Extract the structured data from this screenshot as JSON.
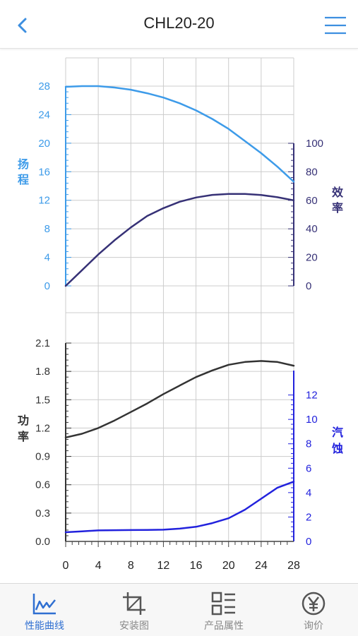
{
  "header": {
    "title": "CHL20-20"
  },
  "tabs": [
    {
      "label": "性能曲线",
      "icon": "line-chart-icon",
      "active": true
    },
    {
      "label": "安装图",
      "icon": "crop-icon",
      "active": false
    },
    {
      "label": "产品属性",
      "icon": "list-icon",
      "active": false
    },
    {
      "label": "询价",
      "icon": "yen-icon",
      "active": false
    }
  ],
  "colors": {
    "head": "#3d9be9",
    "efficiency": "#363176",
    "power": "#333333",
    "npsh": "#2222dd",
    "grid": "#cccccc",
    "active": "#2f6fd1"
  },
  "chart_data": [
    {
      "type": "line",
      "x_ticks": [
        "0",
        "4",
        "8",
        "12",
        "16",
        "20",
        "24",
        "28"
      ],
      "xlim": [
        0,
        28
      ],
      "grid": true,
      "left_axis": {
        "label": "扬程",
        "ylim": [
          0,
          28
        ],
        "ticks": [
          "0",
          "4",
          "8",
          "12",
          "16",
          "20",
          "24",
          "28"
        ]
      },
      "right_axis": {
        "label": "效率",
        "ylim": [
          0,
          100
        ],
        "ticks": [
          "0",
          "20",
          "40",
          "60",
          "80",
          "100"
        ]
      },
      "series": [
        {
          "axis": "left",
          "color": "#3d9be9",
          "x": [
            0,
            2,
            4,
            6,
            8,
            10,
            12,
            14,
            16,
            18,
            20,
            22,
            24,
            26,
            28
          ],
          "y": [
            27.9,
            28.0,
            28.0,
            27.8,
            27.5,
            27.0,
            26.4,
            25.6,
            24.6,
            23.4,
            22.0,
            20.3,
            18.6,
            16.7,
            14.6
          ]
        },
        {
          "axis": "right",
          "color": "#363176",
          "x": [
            0,
            2,
            4,
            6,
            8,
            10,
            12,
            14,
            16,
            18,
            20,
            22,
            24,
            26,
            28
          ],
          "y": [
            0,
            11,
            22,
            32,
            41,
            49,
            54.5,
            59,
            62,
            63.8,
            64.5,
            64.5,
            63.7,
            62.2,
            60
          ]
        }
      ]
    },
    {
      "type": "line",
      "x_ticks": [
        "0",
        "4",
        "8",
        "12",
        "16",
        "20",
        "24",
        "28"
      ],
      "xlim": [
        0,
        28
      ],
      "grid": true,
      "left_axis": {
        "label": "功率",
        "ylim": [
          0,
          2.1
        ],
        "ticks": [
          "0.0",
          "0.3",
          "0.6",
          "0.9",
          "1.2",
          "1.5",
          "1.8",
          "2.1"
        ]
      },
      "right_axis": {
        "label": "汽蚀",
        "ylim": [
          0,
          14
        ],
        "ticks": [
          "0",
          "2",
          "4",
          "6",
          "8",
          "10",
          "12"
        ]
      },
      "series": [
        {
          "axis": "left",
          "color": "#333333",
          "x": [
            0,
            2,
            4,
            6,
            8,
            10,
            12,
            14,
            16,
            18,
            20,
            22,
            24,
            26,
            28
          ],
          "y": [
            1.1,
            1.14,
            1.2,
            1.28,
            1.37,
            1.46,
            1.56,
            1.65,
            1.74,
            1.81,
            1.87,
            1.9,
            1.91,
            1.9,
            1.86
          ]
        },
        {
          "axis": "right",
          "color": "#2222dd",
          "x": [
            0,
            2,
            4,
            6,
            8,
            10,
            12,
            14,
            16,
            18,
            20,
            22,
            24,
            26,
            28
          ],
          "y": [
            0.75,
            0.83,
            0.9,
            0.92,
            0.93,
            0.94,
            0.96,
            1.05,
            1.2,
            1.5,
            1.9,
            2.6,
            3.5,
            4.4,
            4.9
          ]
        }
      ]
    }
  ]
}
